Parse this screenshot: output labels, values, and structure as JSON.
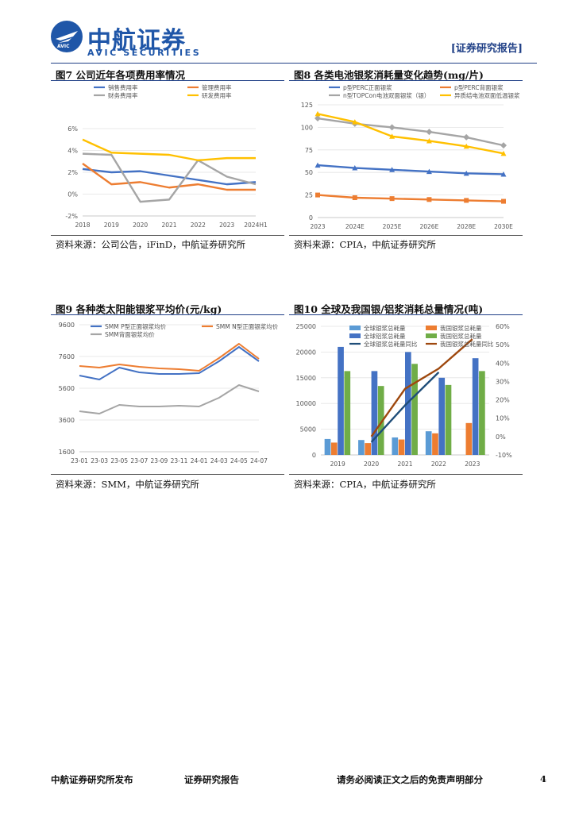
{
  "header": {
    "logo_icon": "avic-wing-icon",
    "logo_badge": "AVIC",
    "brand_cn": "中航证券",
    "brand_en": "AVIC SECURITIES",
    "report_tag": "[证券研究报告]",
    "accent_color": "#1f56a8"
  },
  "figures": [
    {
      "title": "图7 公司近年各项费用率情况",
      "source": "资料来源：公司公告，iFinD，中航证券研究所",
      "chart_data": {
        "type": "line",
        "categories": [
          "2018",
          "2019",
          "2020",
          "2021",
          "2022",
          "2023",
          "2024H1"
        ],
        "ylim": [
          -2,
          6
        ],
        "yticks": [
          -2,
          0,
          2,
          4,
          6
        ],
        "ytick_labels": [
          "-2%",
          "0%",
          "2%",
          "4%",
          "6%"
        ],
        "series": [
          {
            "name": "销售费用率",
            "color": "#4472c4",
            "values": [
              2.3,
              2.0,
              2.1,
              1.7,
              1.3,
              0.9,
              1.1
            ]
          },
          {
            "name": "管理费用率",
            "color": "#ed7d31",
            "values": [
              2.8,
              0.9,
              1.1,
              0.6,
              0.9,
              0.4,
              0.4
            ]
          },
          {
            "name": "财务费用率",
            "color": "#a5a5a5",
            "values": [
              3.7,
              3.6,
              -0.7,
              -0.5,
              3.1,
              1.6,
              0.9
            ]
          },
          {
            "name": "研发费用率",
            "color": "#ffc000",
            "values": [
              5.0,
              3.8,
              3.7,
              3.6,
              3.1,
              3.3,
              3.3
            ]
          }
        ]
      }
    },
    {
      "title": "图8 各类电池银浆消耗量变化趋势(mg/片)",
      "source": "资料来源：CPIA，中航证券研究所",
      "chart_data": {
        "type": "line",
        "categories": [
          "2023",
          "2024E",
          "2025E",
          "2026E",
          "2028E",
          "2030E"
        ],
        "ylim": [
          0,
          125
        ],
        "yticks": [
          0,
          25,
          50,
          75,
          100,
          125
        ],
        "ytick_labels": [
          "0",
          "25",
          "50",
          "75",
          "100",
          "125"
        ],
        "series": [
          {
            "name": "p型PERC正面银浆",
            "color": "#4472c4",
            "values": [
              58,
              55,
              53,
              51,
              49,
              48
            ]
          },
          {
            "name": "p型PERC背面银浆",
            "color": "#ed7d31",
            "values": [
              25,
              22,
              21,
              20,
              19,
              18
            ]
          },
          {
            "name": "n型TOPCon电池双面银浆（银）",
            "color": "#a5a5a5",
            "values": [
              110,
              104,
              100,
              95,
              89,
              80
            ]
          },
          {
            "name": "异质结电池双面低温银浆",
            "color": "#ffc000",
            "values": [
              115,
              106,
              90,
              85,
              79,
              71
            ]
          }
        ]
      }
    },
    {
      "title": "图9 各种类太阳能银浆平均价(元/kg)",
      "source": "资料来源：SMM，中航证券研究所",
      "chart_data": {
        "type": "line",
        "categories": [
          "23-01",
          "23-03",
          "23-05",
          "23-07",
          "23-09",
          "23-11",
          "24-01",
          "24-03",
          "24-05",
          "24-07"
        ],
        "ylim": [
          1600,
          9600
        ],
        "yticks": [
          1600,
          3600,
          5600,
          7600,
          9600
        ],
        "ytick_labels": [
          "1600",
          "3600",
          "5600",
          "7600",
          "9600"
        ],
        "series": [
          {
            "name": "SMM P型正面银浆均价",
            "color": "#4472c4",
            "values": [
              6400,
              6150,
              6900,
              6600,
              6500,
              6500,
              6550,
              7300,
              8200,
              7300
            ]
          },
          {
            "name": "SMM N型正面银浆均价",
            "color": "#ed7d31",
            "values": [
              7000,
              6900,
              7100,
              6950,
              6850,
              6800,
              6700,
              7500,
              8400,
              7450
            ]
          },
          {
            "name": "SMM背面银浆均价",
            "color": "#a5a5a5",
            "values": [
              4150,
              4000,
              4550,
              4450,
              4450,
              4500,
              4450,
              5000,
              5800,
              5400
            ]
          }
        ]
      }
    },
    {
      "title": "图10 全球及我国银/铝浆消耗总量情况(吨)",
      "source": "资料来源：CPIA，中航证券研究所",
      "chart_data": {
        "type": "bar",
        "categories": [
          "2019",
          "2020",
          "2021",
          "2022",
          "2023"
        ],
        "ylim": [
          0,
          25000
        ],
        "yticks": [
          0,
          5000,
          10000,
          15000,
          20000,
          25000
        ],
        "ytick_labels": [
          "0",
          "5000",
          "10000",
          "15000",
          "20000",
          "25000"
        ],
        "y2lim": [
          -10,
          60
        ],
        "y2ticks": [
          -10,
          0,
          10,
          20,
          30,
          40,
          50,
          60
        ],
        "y2tick_labels": [
          "-10%",
          "0%",
          "10%",
          "20%",
          "30%",
          "40%",
          "50%",
          "60%"
        ],
        "series": [
          {
            "name": "全球银浆总耗量",
            "color": "#5b9bd5",
            "type": "bar",
            "values": [
              3100,
              2900,
              3400,
              4600,
              null
            ]
          },
          {
            "name": "我国银浆总耗量",
            "color": "#ed7d31",
            "type": "bar",
            "values": [
              2400,
              2300,
              3000,
              4200,
              6200
            ]
          },
          {
            "name": "全球铝浆总耗量",
            "color": "#4472c4",
            "type": "bar",
            "values": [
              21000,
              16300,
              20000,
              15000,
              18800
            ]
          },
          {
            "name": "我国铝浆总耗量",
            "color": "#70ad47",
            "type": "bar",
            "values": [
              16300,
              13400,
              17700,
              13600,
              16300
            ]
          },
          {
            "name": "全球银浆总耗量同比",
            "color": "#1f4e79",
            "type": "line",
            "axis": "right",
            "values": [
              null,
              -3,
              17,
              35,
              null
            ]
          },
          {
            "name": "我国银浆总耗量同比",
            "color": "#9e480e",
            "type": "line",
            "axis": "right",
            "values": [
              null,
              0,
              26,
              37,
              53
            ]
          }
        ]
      }
    }
  ],
  "footer": {
    "publisher": "中航证券研究所发布",
    "doc_type": "证券研究报告",
    "disclaimer": "请务必阅读正文之后的免责声明部分",
    "page_number": "4"
  }
}
